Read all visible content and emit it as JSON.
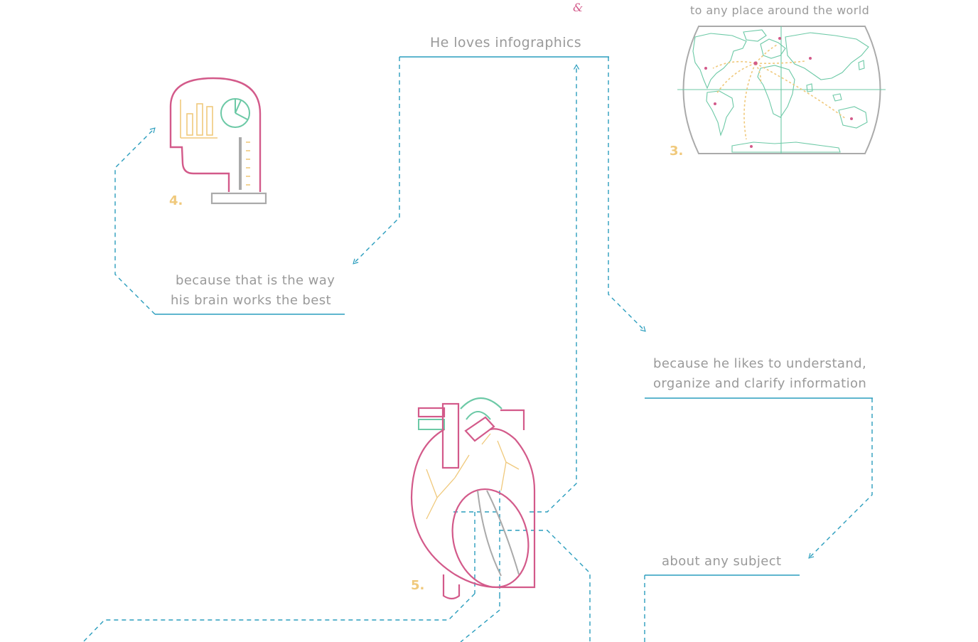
{
  "captions": {
    "amp": "&",
    "travel": "to any place around the world",
    "infographics": "He loves infographics",
    "brain_line1": "because that is the way",
    "brain_line2": "his brain works the best",
    "understand_line1": "because he likes to understand,",
    "understand_line2": "organize and clarify information",
    "subject": "about any subject"
  },
  "step_numbers": {
    "map": "3.",
    "head": "4.",
    "heart": "5."
  },
  "colors": {
    "teal_line": "#2a9dbd",
    "pink": "#d35a8a",
    "green": "#6cc9a6",
    "yellow": "#f0c97c",
    "gray": "#aaaaaa",
    "text": "#9a9a9a",
    "map_land": "#6cc9a6"
  },
  "icons": [
    "world-map-icon",
    "head-with-charts-icon",
    "anatomical-heart-icon"
  ]
}
